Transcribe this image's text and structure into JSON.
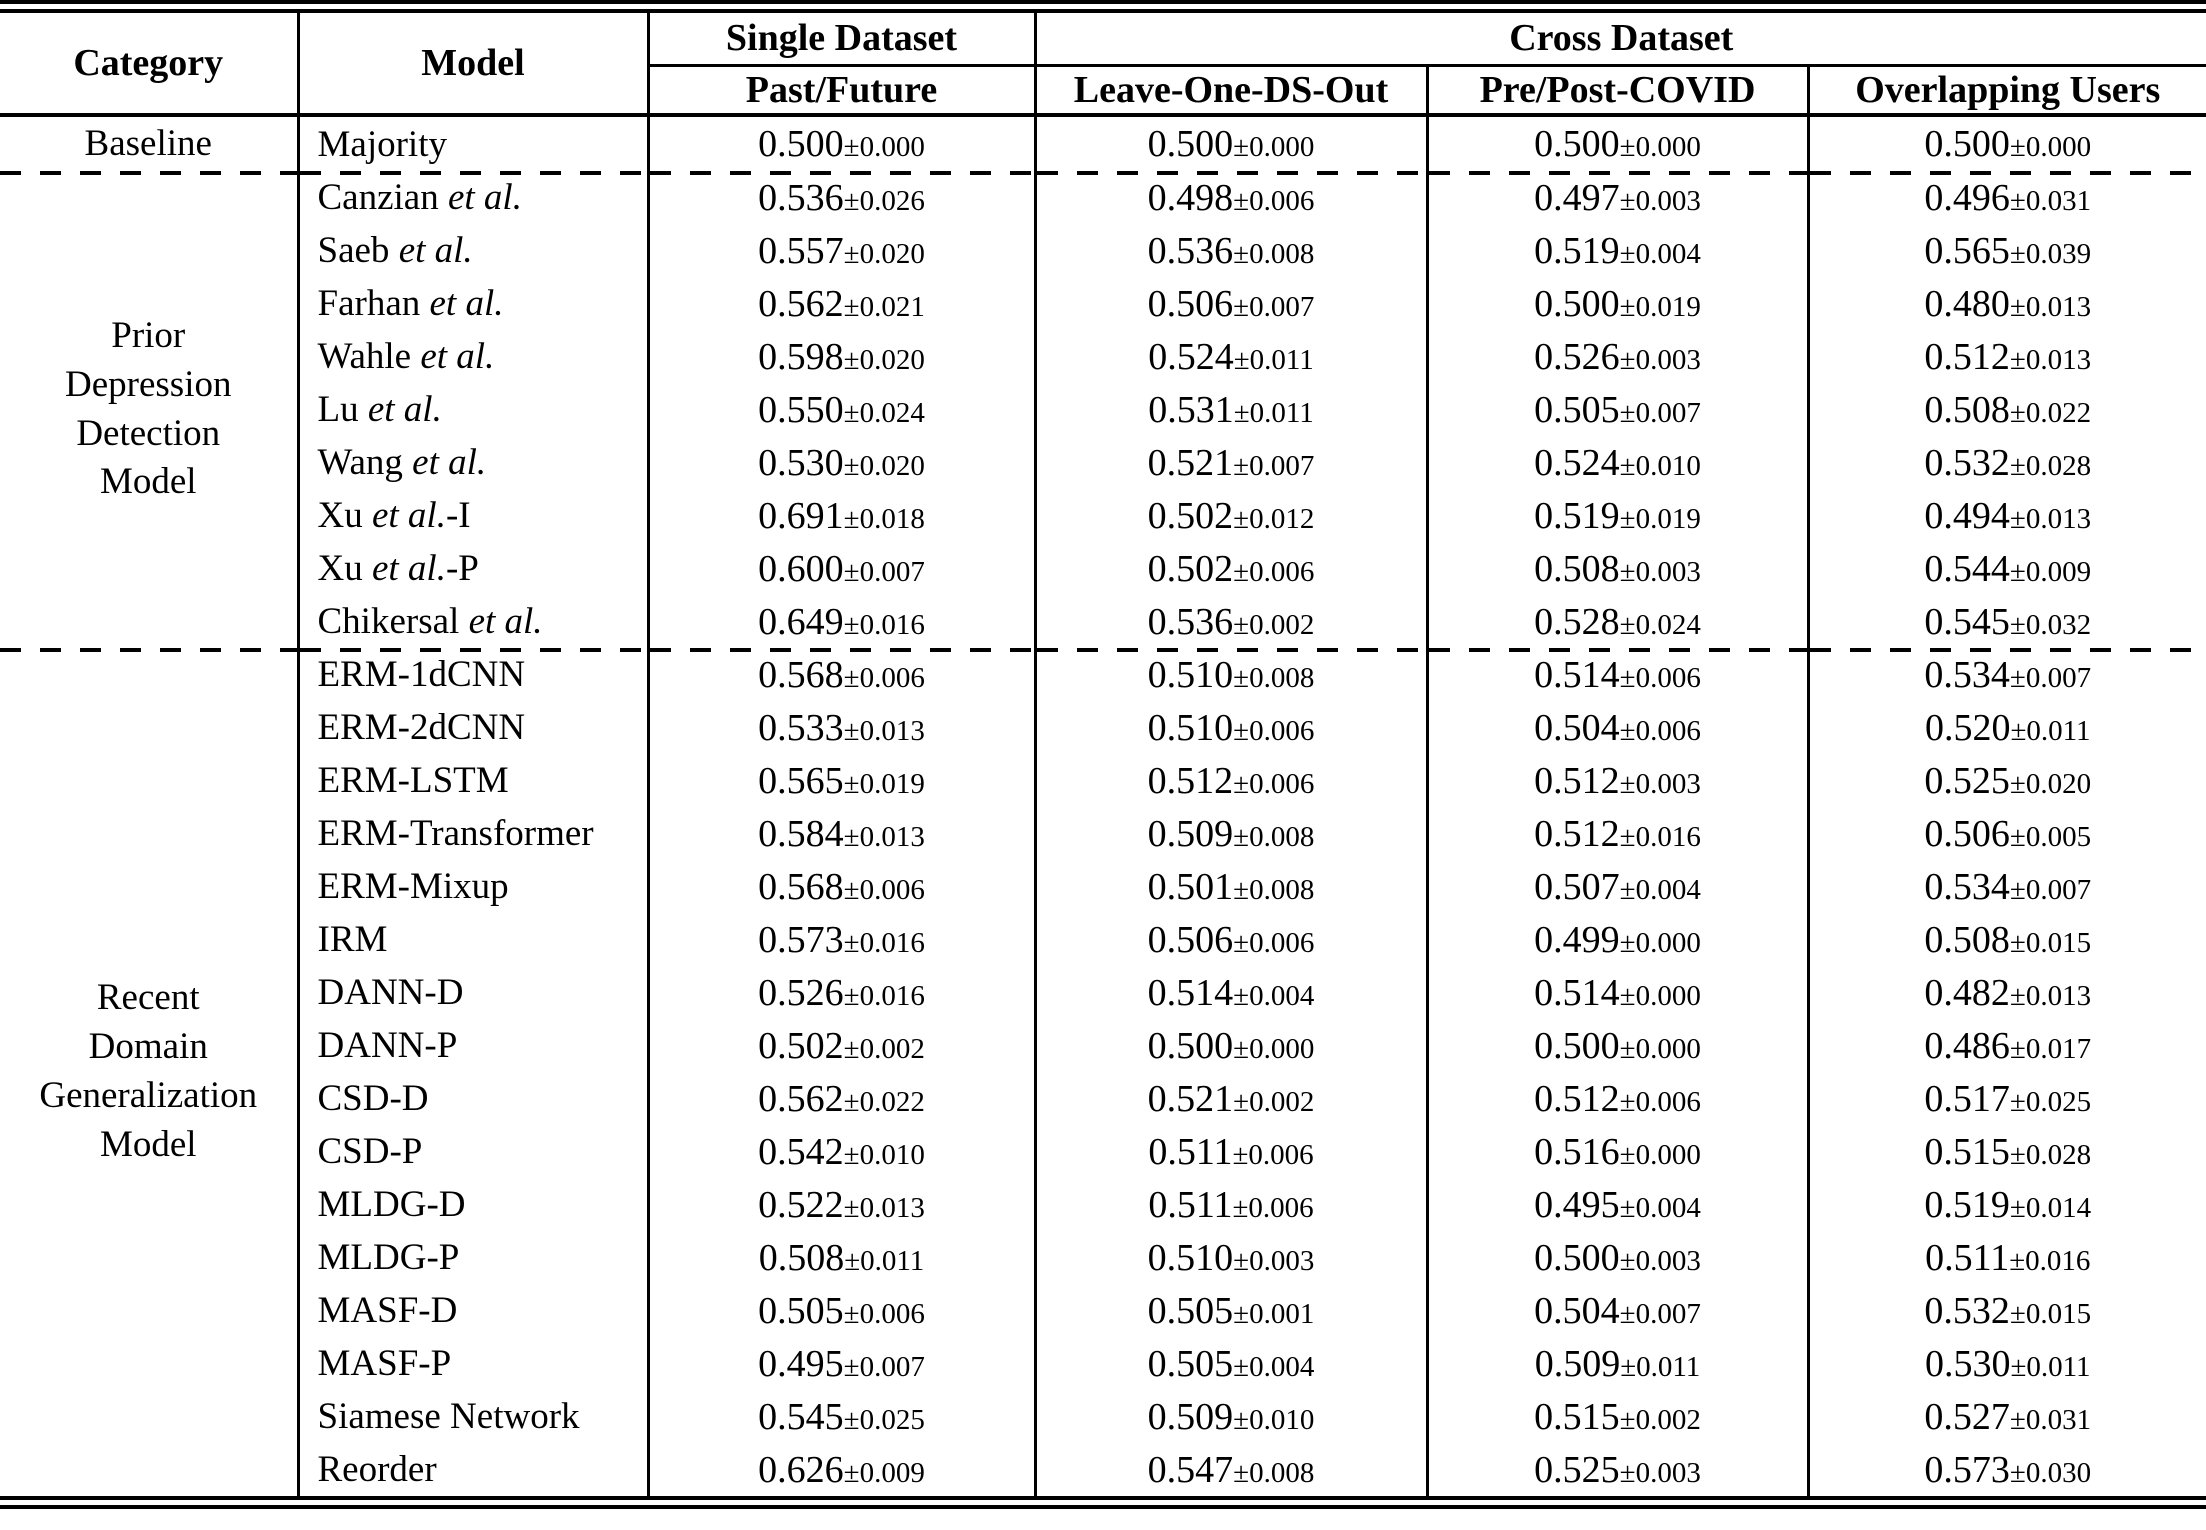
{
  "table": {
    "header": {
      "category": "Category",
      "model": "Model",
      "single_dataset": "Single Dataset",
      "cross_dataset": "Cross Dataset",
      "sub_columns": [
        "Past/Future",
        "Leave-One-DS-Out",
        "Pre/Post-COVID",
        "Overlapping Users"
      ]
    },
    "value_format": {
      "pm": "±"
    },
    "sections": [
      {
        "category_lines": [
          "Baseline"
        ],
        "rows": [
          {
            "model": [
              "Majority",
              "",
              ""
            ],
            "values": [
              [
                "0.500",
                "0.000"
              ],
              [
                "0.500",
                "0.000"
              ],
              [
                "0.500",
                "0.000"
              ],
              [
                "0.500",
                "0.000"
              ]
            ]
          }
        ]
      },
      {
        "category_lines": [
          "Prior",
          "Depression",
          "Detection",
          "Model"
        ],
        "rows": [
          {
            "model": [
              "Canzian ",
              "et al.",
              ""
            ],
            "values": [
              [
                "0.536",
                "0.026"
              ],
              [
                "0.498",
                "0.006"
              ],
              [
                "0.497",
                "0.003"
              ],
              [
                "0.496",
                "0.031"
              ]
            ]
          },
          {
            "model": [
              "Saeb ",
              "et al.",
              ""
            ],
            "values": [
              [
                "0.557",
                "0.020"
              ],
              [
                "0.536",
                "0.008"
              ],
              [
                "0.519",
                "0.004"
              ],
              [
                "0.565",
                "0.039"
              ]
            ]
          },
          {
            "model": [
              "Farhan ",
              "et al.",
              ""
            ],
            "values": [
              [
                "0.562",
                "0.021"
              ],
              [
                "0.506",
                "0.007"
              ],
              [
                "0.500",
                "0.019"
              ],
              [
                "0.480",
                "0.013"
              ]
            ]
          },
          {
            "model": [
              "Wahle ",
              "et al.",
              ""
            ],
            "values": [
              [
                "0.598",
                "0.020"
              ],
              [
                "0.524",
                "0.011"
              ],
              [
                "0.526",
                "0.003"
              ],
              [
                "0.512",
                "0.013"
              ]
            ]
          },
          {
            "model": [
              "Lu ",
              "et al.",
              ""
            ],
            "values": [
              [
                "0.550",
                "0.024"
              ],
              [
                "0.531",
                "0.011"
              ],
              [
                "0.505",
                "0.007"
              ],
              [
                "0.508",
                "0.022"
              ]
            ]
          },
          {
            "model": [
              "Wang ",
              "et al.",
              ""
            ],
            "values": [
              [
                "0.530",
                "0.020"
              ],
              [
                "0.521",
                "0.007"
              ],
              [
                "0.524",
                "0.010"
              ],
              [
                "0.532",
                "0.028"
              ]
            ]
          },
          {
            "model": [
              "Xu ",
              "et al.",
              "-I"
            ],
            "values": [
              [
                "0.691",
                "0.018"
              ],
              [
                "0.502",
                "0.012"
              ],
              [
                "0.519",
                "0.019"
              ],
              [
                "0.494",
                "0.013"
              ]
            ]
          },
          {
            "model": [
              "Xu ",
              "et al.",
              "-P"
            ],
            "values": [
              [
                "0.600",
                "0.007"
              ],
              [
                "0.502",
                "0.006"
              ],
              [
                "0.508",
                "0.003"
              ],
              [
                "0.544",
                "0.009"
              ]
            ]
          },
          {
            "model": [
              "Chikersal ",
              "et al.",
              ""
            ],
            "values": [
              [
                "0.649",
                "0.016"
              ],
              [
                "0.536",
                "0.002"
              ],
              [
                "0.528",
                "0.024"
              ],
              [
                "0.545",
                "0.032"
              ]
            ]
          }
        ]
      },
      {
        "category_lines": [
          "Recent",
          "Domain",
          "Generalization",
          "Model"
        ],
        "rows": [
          {
            "model": [
              "ERM-1dCNN",
              "",
              ""
            ],
            "values": [
              [
                "0.568",
                "0.006"
              ],
              [
                "0.510",
                "0.008"
              ],
              [
                "0.514",
                "0.006"
              ],
              [
                "0.534",
                "0.007"
              ]
            ]
          },
          {
            "model": [
              "ERM-2dCNN",
              "",
              ""
            ],
            "values": [
              [
                "0.533",
                "0.013"
              ],
              [
                "0.510",
                "0.006"
              ],
              [
                "0.504",
                "0.006"
              ],
              [
                "0.520",
                "0.011"
              ]
            ]
          },
          {
            "model": [
              "ERM-LSTM",
              "",
              ""
            ],
            "values": [
              [
                "0.565",
                "0.019"
              ],
              [
                "0.512",
                "0.006"
              ],
              [
                "0.512",
                "0.003"
              ],
              [
                "0.525",
                "0.020"
              ]
            ]
          },
          {
            "model": [
              "ERM-Transformer",
              "",
              ""
            ],
            "values": [
              [
                "0.584",
                "0.013"
              ],
              [
                "0.509",
                "0.008"
              ],
              [
                "0.512",
                "0.016"
              ],
              [
                "0.506",
                "0.005"
              ]
            ]
          },
          {
            "model": [
              "ERM-Mixup",
              "",
              ""
            ],
            "values": [
              [
                "0.568",
                "0.006"
              ],
              [
                "0.501",
                "0.008"
              ],
              [
                "0.507",
                "0.004"
              ],
              [
                "0.534",
                "0.007"
              ]
            ]
          },
          {
            "model": [
              "IRM",
              "",
              ""
            ],
            "values": [
              [
                "0.573",
                "0.016"
              ],
              [
                "0.506",
                "0.006"
              ],
              [
                "0.499",
                "0.000"
              ],
              [
                "0.508",
                "0.015"
              ]
            ]
          },
          {
            "model": [
              "DANN-D",
              "",
              ""
            ],
            "values": [
              [
                "0.526",
                "0.016"
              ],
              [
                "0.514",
                "0.004"
              ],
              [
                "0.514",
                "0.000"
              ],
              [
                "0.482",
                "0.013"
              ]
            ]
          },
          {
            "model": [
              "DANN-P",
              "",
              ""
            ],
            "values": [
              [
                "0.502",
                "0.002"
              ],
              [
                "0.500",
                "0.000"
              ],
              [
                "0.500",
                "0.000"
              ],
              [
                "0.486",
                "0.017"
              ]
            ]
          },
          {
            "model": [
              "CSD-D",
              "",
              ""
            ],
            "values": [
              [
                "0.562",
                "0.022"
              ],
              [
                "0.521",
                "0.002"
              ],
              [
                "0.512",
                "0.006"
              ],
              [
                "0.517",
                "0.025"
              ]
            ]
          },
          {
            "model": [
              "CSD-P",
              "",
              ""
            ],
            "values": [
              [
                "0.542",
                "0.010"
              ],
              [
                "0.511",
                "0.006"
              ],
              [
                "0.516",
                "0.000"
              ],
              [
                "0.515",
                "0.028"
              ]
            ]
          },
          {
            "model": [
              "MLDG-D",
              "",
              ""
            ],
            "values": [
              [
                "0.522",
                "0.013"
              ],
              [
                "0.511",
                "0.006"
              ],
              [
                "0.495",
                "0.004"
              ],
              [
                "0.519",
                "0.014"
              ]
            ]
          },
          {
            "model": [
              "MLDG-P",
              "",
              ""
            ],
            "values": [
              [
                "0.508",
                "0.011"
              ],
              [
                "0.510",
                "0.003"
              ],
              [
                "0.500",
                "0.003"
              ],
              [
                "0.511",
                "0.016"
              ]
            ]
          },
          {
            "model": [
              "MASF-D",
              "",
              ""
            ],
            "values": [
              [
                "0.505",
                "0.006"
              ],
              [
                "0.505",
                "0.001"
              ],
              [
                "0.504",
                "0.007"
              ],
              [
                "0.532",
                "0.015"
              ]
            ]
          },
          {
            "model": [
              "MASF-P",
              "",
              ""
            ],
            "values": [
              [
                "0.495",
                "0.007"
              ],
              [
                "0.505",
                "0.004"
              ],
              [
                "0.509",
                "0.011"
              ],
              [
                "0.530",
                "0.011"
              ]
            ]
          },
          {
            "model": [
              "Siamese Network",
              "",
              ""
            ],
            "values": [
              [
                "0.545",
                "0.025"
              ],
              [
                "0.509",
                "0.010"
              ],
              [
                "0.515",
                "0.002"
              ],
              [
                "0.527",
                "0.031"
              ]
            ]
          },
          {
            "model": [
              "Reorder",
              "",
              ""
            ],
            "values": [
              [
                "0.626",
                "0.009"
              ],
              [
                "0.547",
                "0.008"
              ],
              [
                "0.525",
                "0.003"
              ],
              [
                "0.573",
                "0.030"
              ]
            ]
          }
        ]
      }
    ]
  }
}
